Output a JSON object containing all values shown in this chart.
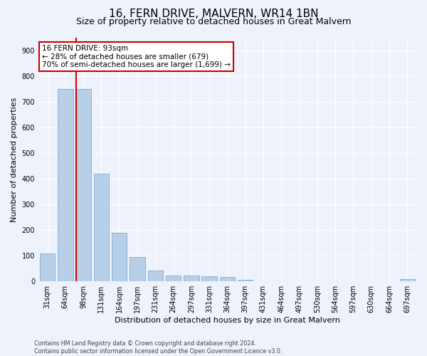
{
  "title": "16, FERN DRIVE, MALVERN, WR14 1BN",
  "subtitle": "Size of property relative to detached houses in Great Malvern",
  "xlabel": "Distribution of detached houses by size in Great Malvern",
  "ylabel": "Number of detached properties",
  "categories": [
    "31sqm",
    "64sqm",
    "98sqm",
    "131sqm",
    "164sqm",
    "197sqm",
    "231sqm",
    "264sqm",
    "297sqm",
    "331sqm",
    "364sqm",
    "397sqm",
    "431sqm",
    "464sqm",
    "497sqm",
    "530sqm",
    "564sqm",
    "597sqm",
    "630sqm",
    "664sqm",
    "697sqm"
  ],
  "values": [
    110,
    750,
    750,
    420,
    190,
    95,
    43,
    22,
    22,
    20,
    18,
    5,
    0,
    0,
    0,
    0,
    0,
    0,
    0,
    0,
    8
  ],
  "bar_color": "#b8cfe8",
  "bar_edge_color": "#7aadd4",
  "property_line_color": "#cc0000",
  "annotation_text": "16 FERN DRIVE: 93sqm\n← 28% of detached houses are smaller (679)\n70% of semi-detached houses are larger (1,699) →",
  "annotation_box_color": "#ffffff",
  "annotation_box_edge_color": "#cc0000",
  "ylim": [
    0,
    950
  ],
  "yticks": [
    0,
    100,
    200,
    300,
    400,
    500,
    600,
    700,
    800,
    900
  ],
  "background_color": "#eef2fb",
  "footer_text": "Contains HM Land Registry data © Crown copyright and database right 2024.\nContains public sector information licensed under the Open Government Licence v3.0.",
  "title_fontsize": 11,
  "subtitle_fontsize": 9,
  "axis_label_fontsize": 8,
  "tick_fontsize": 7,
  "annotation_fontsize": 7.5,
  "footer_fontsize": 5.8
}
